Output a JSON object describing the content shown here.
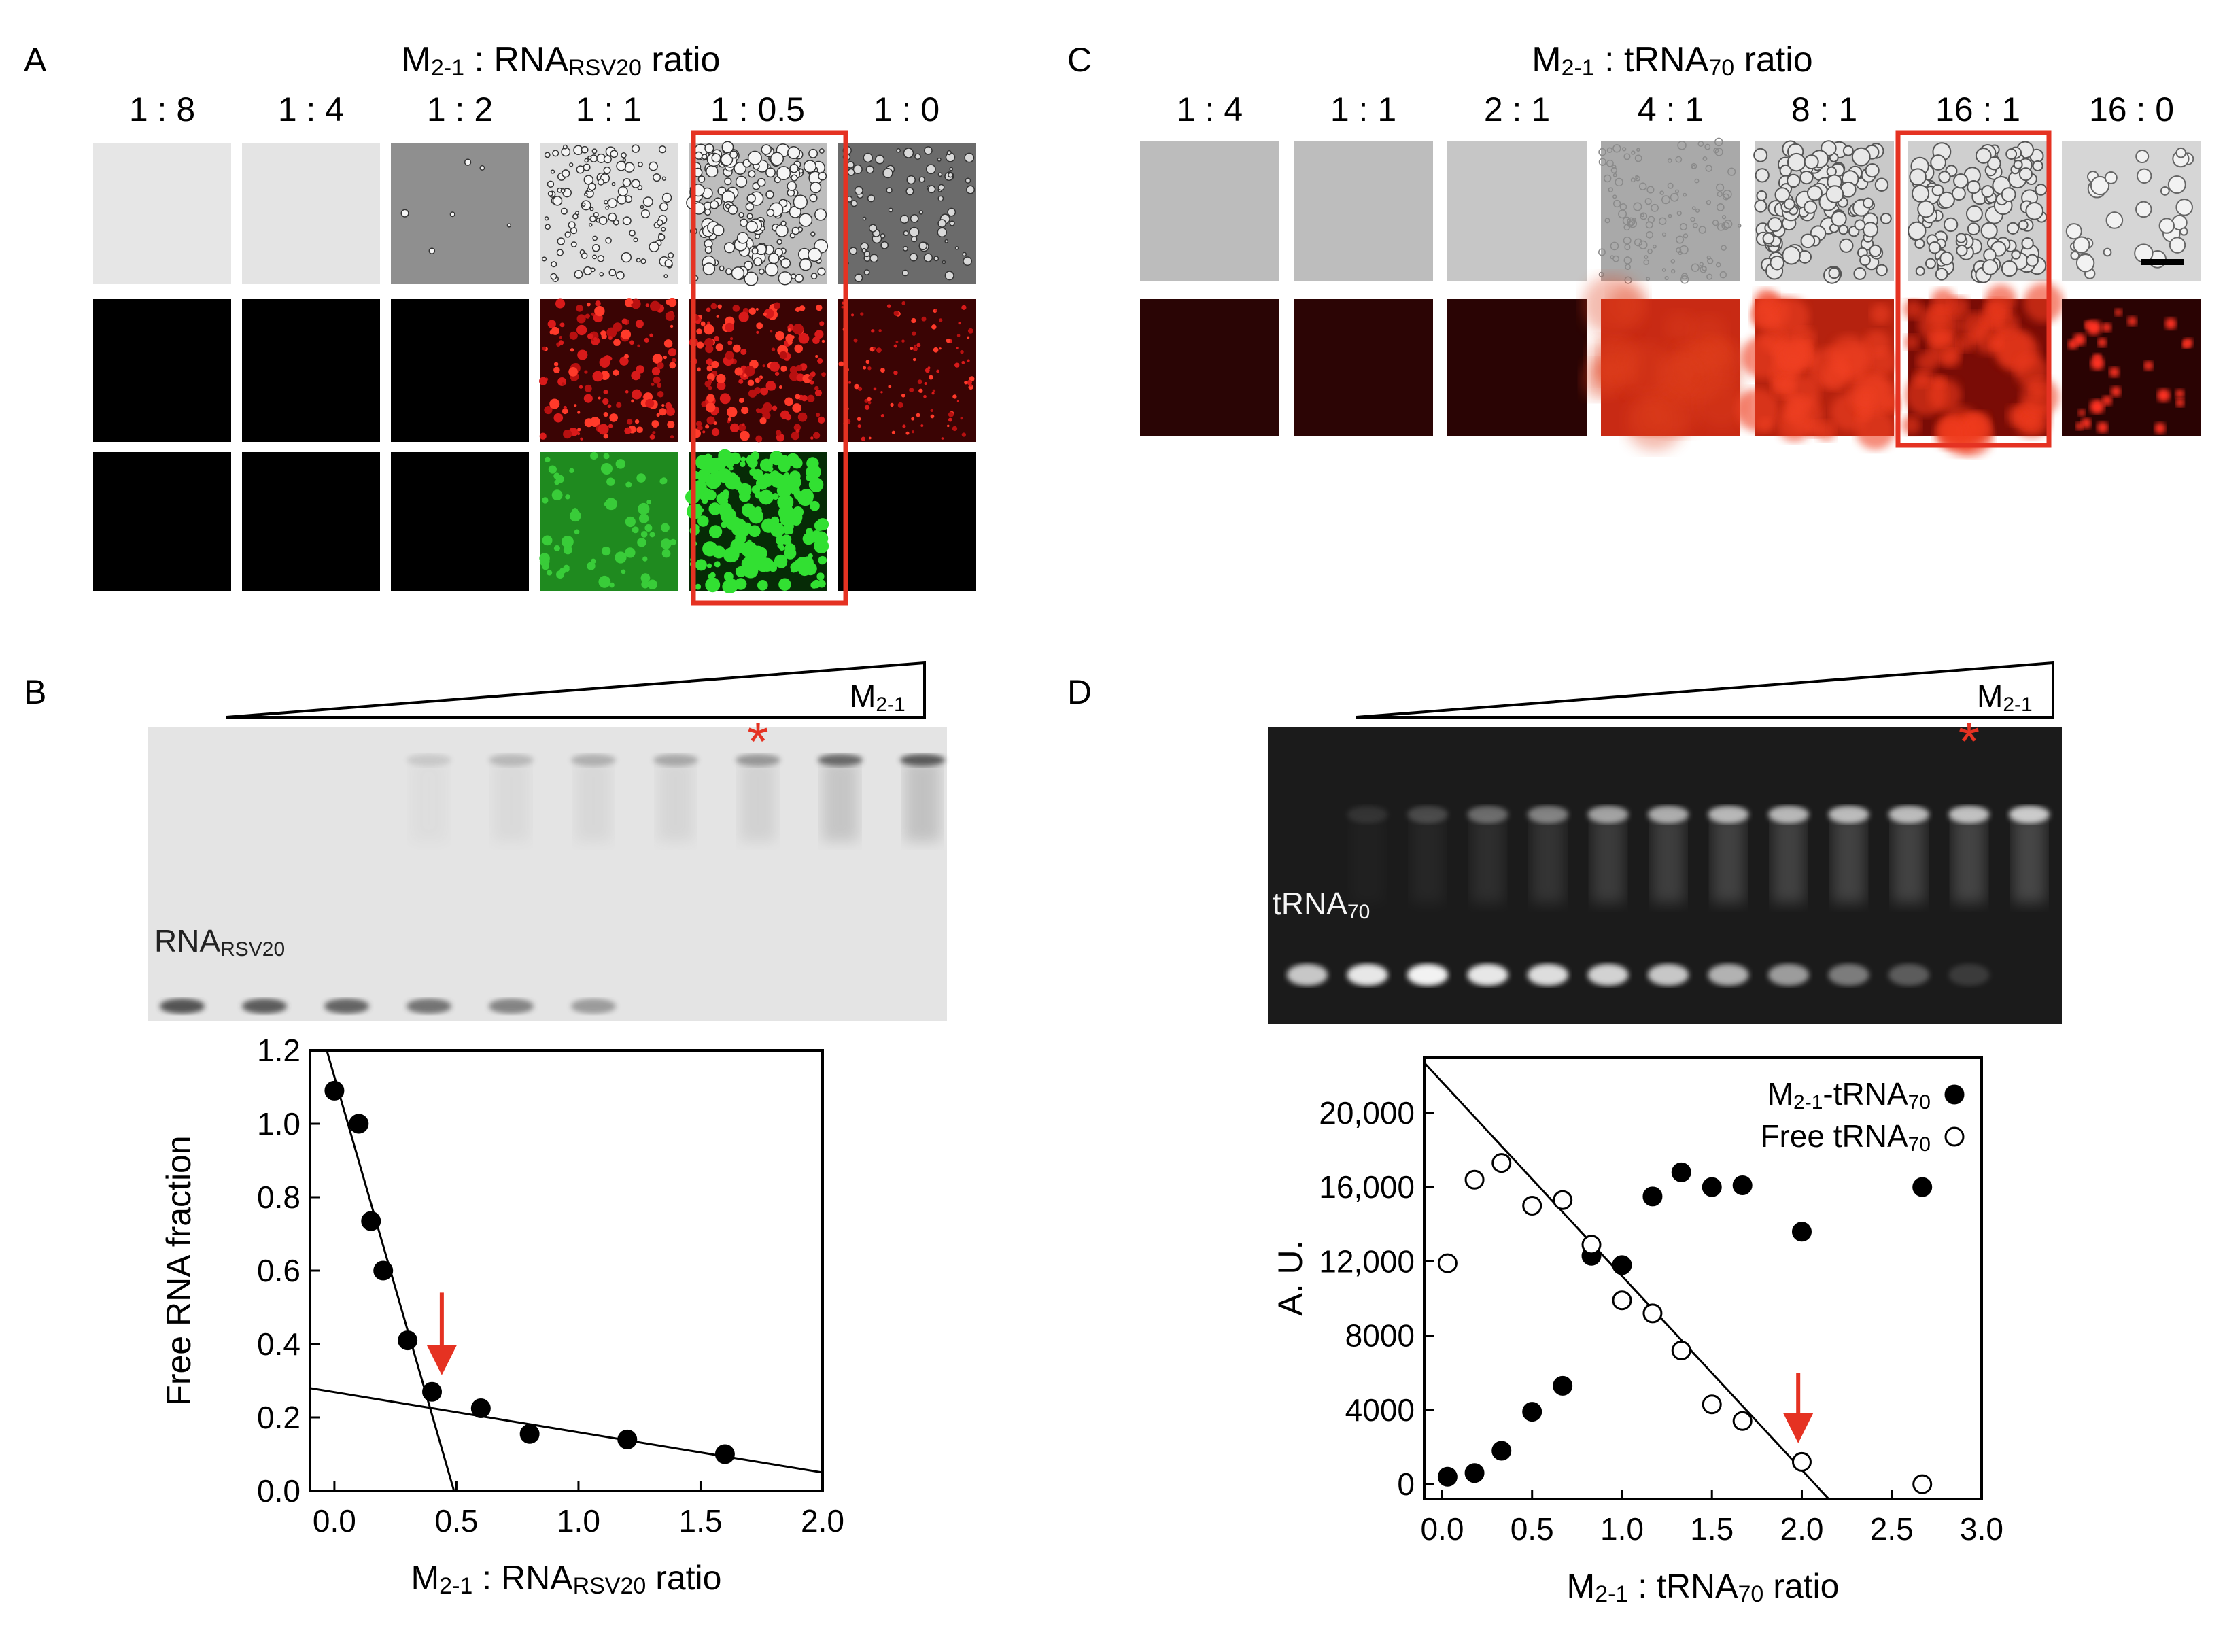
{
  "panels": {
    "A": {
      "letter": "A",
      "title": {
        "main": "M",
        "sub": "2-1",
        "rest": " : RNA",
        "sub2": "RSV20",
        "tail": " ratio"
      },
      "ratios": [
        "1 : 8",
        "1 : 4",
        "1 : 2",
        "1 : 1",
        "1 : 0.5",
        "1 : 0"
      ],
      "highlight_index": 4,
      "rows": [
        "brightfield",
        "red-fluorescence",
        "green-fluorescence"
      ],
      "droplets": [
        "none",
        "none",
        "few",
        "many",
        "dense",
        "many-small"
      ]
    },
    "B": {
      "letter": "B",
      "wedge_label": {
        "main": "M",
        "sub": "2-1"
      },
      "gel_label": {
        "main": "RNA",
        "sub": "RSV20"
      },
      "star": "*",
      "free_band_intensity": [
        0.9,
        0.85,
        0.8,
        0.7,
        0.6,
        0.45,
        0,
        0,
        0,
        0
      ],
      "complex_band_intensity": [
        0,
        0,
        0,
        0.15,
        0.25,
        0.3,
        0.35,
        0.45,
        0.75,
        0.85
      ],
      "star_lane": 7
    },
    "C": {
      "letter": "C",
      "title": {
        "main": "M",
        "sub": "2-1",
        "rest": " : tRNA",
        "sub2": "70",
        "tail": " ratio"
      },
      "ratios": [
        "1 : 4",
        "1 : 1",
        "2 : 1",
        "4 : 1",
        "8 : 1",
        "16 : 1",
        "16 : 0"
      ],
      "highlight_index": 5
    },
    "D": {
      "letter": "D",
      "wedge_label": {
        "main": "M",
        "sub": "2-1"
      },
      "gel_label": {
        "main": "tRNA",
        "sub": "70"
      },
      "star": "*",
      "free_band_intensity": [
        0.8,
        0.95,
        1.0,
        0.95,
        0.9,
        0.85,
        0.8,
        0.7,
        0.6,
        0.45,
        0.3,
        0.15,
        0
      ],
      "complex_band_intensity": [
        0,
        0.1,
        0.2,
        0.35,
        0.45,
        0.6,
        0.65,
        0.7,
        0.7,
        0.72,
        0.72,
        0.75,
        0.8
      ],
      "star_lane": 11
    }
  },
  "chart_data": [
    {
      "type": "scatter",
      "panel": "B",
      "xlabel": "M2-1 : RNARSV20 ratio",
      "xlabel_parts": {
        "main": "M",
        "sub": "2-1",
        "mid": " : RNA",
        "sub2": "RSV20",
        "tail": " ratio"
      },
      "ylabel": "Free RNA fraction",
      "xlim": [
        -0.1,
        2.0
      ],
      "ylim": [
        0.0,
        1.2
      ],
      "xticks": [
        "0.0",
        "0.5",
        "1.0",
        "1.5",
        "2.0"
      ],
      "xtick_values": [
        0,
        0.5,
        1.0,
        1.5,
        2.0
      ],
      "yticks": [
        "0.0",
        "0.2",
        "0.4",
        "0.6",
        "0.8",
        "1.0",
        "1.2"
      ],
      "ytick_values": [
        0,
        0.2,
        0.4,
        0.6,
        0.8,
        1.0,
        1.2
      ],
      "series": [
        {
          "name": "Free RNA",
          "marker": "filled",
          "x": [
            0.0,
            0.1,
            0.15,
            0.2,
            0.3,
            0.4,
            0.6,
            0.8,
            1.2,
            1.6
          ],
          "y": [
            1.09,
            1.0,
            0.735,
            0.6,
            0.41,
            0.27,
            0.225,
            0.155,
            0.14,
            0.1
          ]
        }
      ],
      "fit_lines": [
        {
          "x1": -0.04,
          "y1": 1.22,
          "x2": 0.49,
          "y2": 0.0
        },
        {
          "x1": -0.1,
          "y1": 0.28,
          "x2": 2.0,
          "y2": 0.05
        }
      ],
      "arrow_x": 0.44,
      "arrow_y_from": 0.54,
      "arrow_y_to": 0.33
    },
    {
      "type": "scatter",
      "panel": "D",
      "xlabel": "M2-1 : tRNA70 ratio",
      "xlabel_parts": {
        "main": "M",
        "sub": "2-1",
        "mid": " : tRNA",
        "sub2": "70",
        "tail": " ratio"
      },
      "ylabel": "A. U.",
      "xlim": [
        -0.1,
        3.0
      ],
      "ylim": [
        -800,
        23000
      ],
      "xticks": [
        "0.0",
        "0.5",
        "1.0",
        "1.5",
        "2.0",
        "2.5",
        "3.0"
      ],
      "xtick_values": [
        0,
        0.5,
        1.0,
        1.5,
        2.0,
        2.5,
        3.0
      ],
      "yticks": [
        "0",
        "4000",
        "8000",
        "12,000",
        "16,000",
        "20,000"
      ],
      "ytick_values": [
        0,
        4000,
        8000,
        12000,
        16000,
        20000
      ],
      "legend": [
        {
          "main": "M",
          "sub": "2-1",
          "mid": "-tRNA",
          "sub2": "70",
          "marker": "filled"
        },
        {
          "main": "Free tRNA",
          "sub": "70",
          "mid": "",
          "sub2": "",
          "marker": "open"
        }
      ],
      "series": [
        {
          "name": "M2-1-tRNA70",
          "marker": "filled",
          "x": [
            0.03,
            0.18,
            0.33,
            0.5,
            0.67,
            0.83,
            1.0,
            1.17,
            1.33,
            1.5,
            1.67,
            2.0,
            2.67
          ],
          "y": [
            400,
            600,
            1800,
            3900,
            5300,
            12300,
            11800,
            15500,
            16800,
            16000,
            16100,
            13600,
            16000
          ]
        },
        {
          "name": "Free tRNA70",
          "marker": "open",
          "x": [
            0.03,
            0.18,
            0.33,
            0.5,
            0.67,
            0.83,
            1.0,
            1.17,
            1.33,
            1.5,
            1.67,
            2.0,
            2.67
          ],
          "y": [
            11900,
            16400,
            17300,
            15000,
            15300,
            12900,
            9900,
            9200,
            7200,
            4300,
            3400,
            1200,
            0
          ]
        }
      ],
      "fit_lines": [
        {
          "x1": -0.1,
          "y1": 22700,
          "x2": 2.15,
          "y2": -800
        }
      ],
      "arrow_x": 1.98,
      "arrow_y_from": 6000,
      "arrow_y_to": 2500
    }
  ]
}
